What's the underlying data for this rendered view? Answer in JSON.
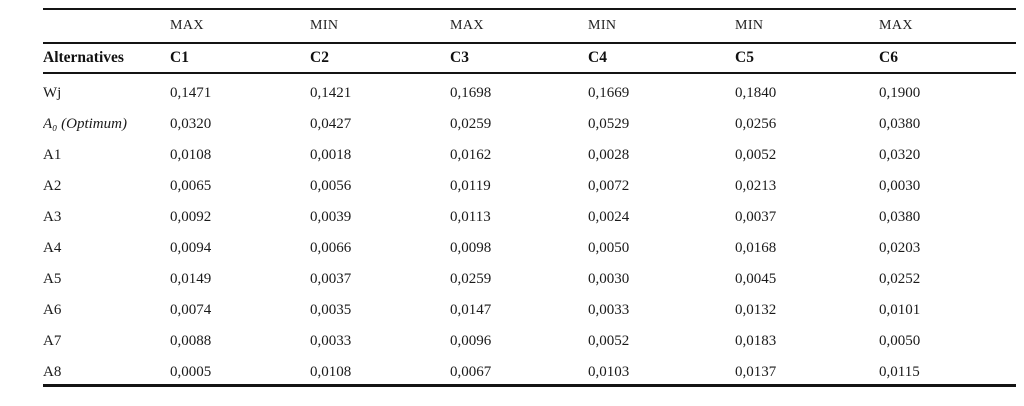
{
  "table": {
    "objective_row": [
      "",
      "MAX",
      "MIN",
      "MAX",
      "MIN",
      "MIN",
      "MAX"
    ],
    "header_row": [
      "Alternatives",
      "C1",
      "C2",
      "C3",
      "C4",
      "C5",
      "C6"
    ],
    "rows": [
      {
        "label": "Wj",
        "italic": false,
        "values": [
          "0,1471",
          "0,1421",
          "0,1698",
          "0,1669",
          "0,1840",
          "0,1900"
        ]
      },
      {
        "label": "A₀ (Optimum)",
        "italic": true,
        "values": [
          "0,0320",
          "0,0427",
          "0,0259",
          "0,0529",
          "0,0256",
          "0,0380"
        ]
      },
      {
        "label": "A1",
        "italic": false,
        "values": [
          "0,0108",
          "0,0018",
          "0,0162",
          "0,0028",
          "0,0052",
          "0,0320"
        ]
      },
      {
        "label": "A2",
        "italic": false,
        "values": [
          "0,0065",
          "0,0056",
          "0,0119",
          "0,0072",
          "0,0213",
          "0,0030"
        ]
      },
      {
        "label": "A3",
        "italic": false,
        "values": [
          "0,0092",
          "0,0039",
          "0,0113",
          "0,0024",
          "0,0037",
          "0,0380"
        ]
      },
      {
        "label": "A4",
        "italic": false,
        "values": [
          "0,0094",
          "0,0066",
          "0,0098",
          "0,0050",
          "0,0168",
          "0,0203"
        ]
      },
      {
        "label": "A5",
        "italic": false,
        "values": [
          "0,0149",
          "0,0037",
          "0,0259",
          "0,0030",
          "0,0045",
          "0,0252"
        ]
      },
      {
        "label": "A6",
        "italic": false,
        "values": [
          "0,0074",
          "0,0035",
          "0,0147",
          "0,0033",
          "0,0132",
          "0,0101"
        ]
      },
      {
        "label": "A7",
        "italic": false,
        "values": [
          "0,0088",
          "0,0033",
          "0,0096",
          "0,0052",
          "0,0183",
          "0,0050"
        ]
      },
      {
        "label": "A8",
        "italic": false,
        "values": [
          "0,0005",
          "0,0108",
          "0,0067",
          "0,0103",
          "0,0137",
          "0,0115"
        ]
      }
    ]
  }
}
